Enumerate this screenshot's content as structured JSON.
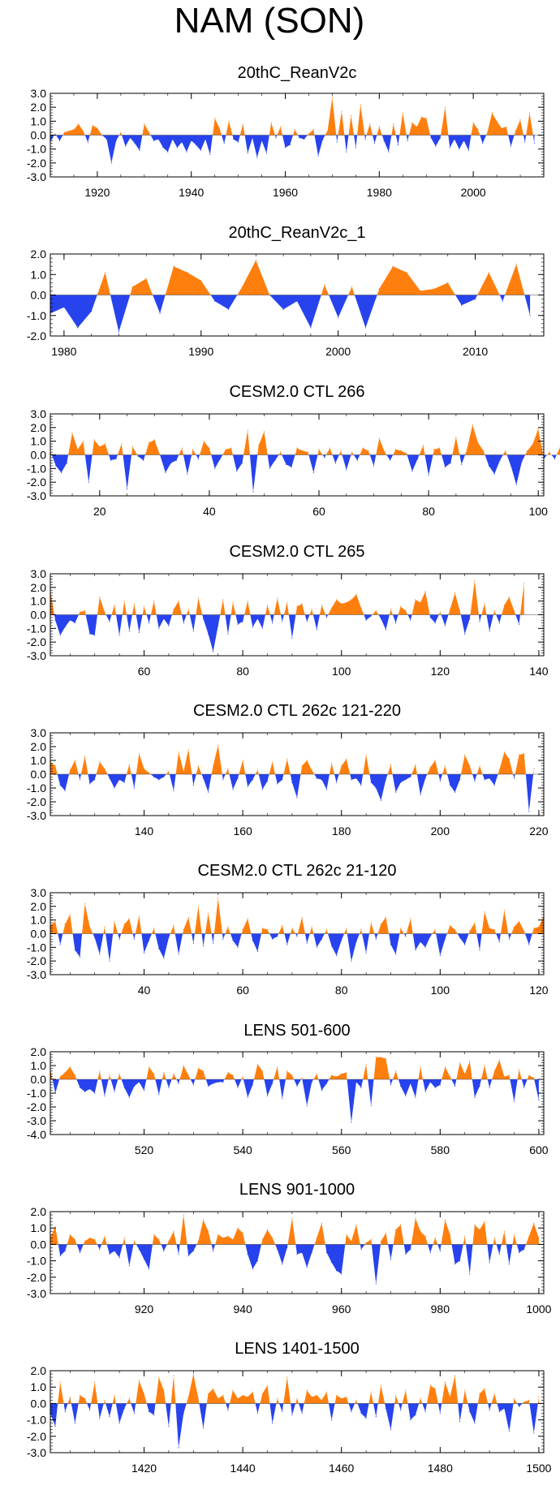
{
  "figure": {
    "title": "NAM (SON)",
    "colors": {
      "positive": "#ff7f0e",
      "negative": "#2743ee",
      "axis": "#000000"
    }
  },
  "chart_data": [
    {
      "type": "area",
      "title": "20thC_ReanV2c",
      "xlim": [
        1910,
        2015
      ],
      "ylim": [
        -3.0,
        3.0
      ],
      "yticks": [
        "3.0",
        "2.0",
        "1.0",
        "0.0",
        "-1.0",
        "-2.0",
        "-3.0"
      ],
      "xticks": [
        1920,
        1940,
        1960,
        1980,
        2000
      ],
      "x_start": 1910,
      "values": [
        -0.5,
        0.1,
        -0.4,
        0.2,
        0.3,
        0.4,
        0.8,
        0.3,
        -0.5,
        0.7,
        0.5,
        0.0,
        -0.3,
        -2.0,
        -0.4,
        0.2,
        -0.8,
        -0.2,
        -0.6,
        -1.1,
        0.8,
        0.2,
        -0.4,
        -0.3,
        -0.9,
        -1.2,
        -0.3,
        -0.9,
        -0.5,
        -1.2,
        -0.4,
        -0.7,
        -1.1,
        -0.3,
        -1.4,
        1.2,
        0.5,
        -0.6,
        1.0,
        -0.3,
        -0.5,
        0.8,
        -1.3,
        -0.2,
        -1.6,
        -0.4,
        -1.3,
        0.9,
        -0.2,
        0.6,
        -0.9,
        -0.7,
        0.4,
        -0.2,
        -0.3,
        0.1,
        0.4,
        -1.5,
        -0.3,
        0.3,
        2.7,
        -0.5,
        1.7,
        -1.2,
        1.4,
        -0.9,
        2.2,
        -0.3,
        0.8,
        -0.6,
        0.6,
        -0.4,
        -1.2,
        0.8,
        -0.7,
        1.6,
        -0.4,
        0.9,
        0.6,
        1.3,
        1.2,
        -0.2,
        -0.8,
        -0.2,
        2.0,
        -0.9,
        -0.3,
        -1.0,
        -0.4,
        -1.1,
        0.9,
        0.4,
        -0.6,
        0.2,
        1.6,
        1.0,
        0.5,
        0.6,
        -0.8,
        0.3,
        1.1,
        -0.5,
        1.6,
        -0.6
      ]
    },
    {
      "type": "area",
      "title": "20thC_ReanV2c_1",
      "xlim": [
        1979,
        2015
      ],
      "ylim": [
        -2.0,
        2.0
      ],
      "yticks": [
        "2.0",
        "1.0",
        "0.0",
        "-1.0",
        "-2.0"
      ],
      "xticks": [
        1980,
        1990,
        2000,
        2010
      ],
      "x_start": 1979,
      "values": [
        -0.9,
        -0.6,
        -1.6,
        -0.8,
        1.1,
        -1.8,
        0.4,
        0.8,
        -0.9,
        1.4,
        1.1,
        0.7,
        -0.3,
        -0.7,
        0.4,
        1.7,
        0.0,
        -0.7,
        -0.3,
        -1.6,
        0.5,
        -1.1,
        0.4,
        -1.6,
        0.3,
        1.4,
        1.1,
        0.2,
        0.3,
        0.6,
        -0.5,
        -0.2,
        1.1,
        -0.3,
        1.5,
        -1.0
      ]
    },
    {
      "type": "area",
      "title": "CESM2.0 CTL 266",
      "xlim": [
        11,
        101
      ],
      "ylim": [
        -3.0,
        3.0
      ],
      "yticks": [
        "3.0",
        "2.0",
        "1.0",
        "0.0",
        "-1.0",
        "-2.0",
        "-3.0"
      ],
      "xticks": [
        20,
        40,
        60,
        80,
        100
      ],
      "x_start": 11,
      "values": [
        0.3,
        -0.8,
        -1.3,
        -0.6,
        1.6,
        0.4,
        1.0,
        -2.0,
        1.1,
        0.6,
        0.8,
        -0.4,
        -0.3,
        0.8,
        -2.5,
        0.6,
        -0.1,
        -0.4,
        0.9,
        1.1,
        0.0,
        -1.3,
        -0.6,
        -0.4,
        0.5,
        -1.4,
        0.4,
        -0.3,
        1.0,
        0.5,
        -1.0,
        -0.3,
        0.4,
        0.5,
        -1.2,
        -0.6,
        1.8,
        -2.7,
        0.7,
        1.7,
        -1.0,
        -0.4,
        0.2,
        -0.7,
        -0.9,
        0.5,
        0.3,
        0.2,
        -1.3,
        0.4,
        -0.2,
        0.5,
        -0.6,
        0.3,
        -1.1,
        0.2,
        -0.4,
        0.5,
        0.3,
        -0.8,
        1.2,
        0.2,
        -0.4,
        0.4,
        0.3,
        0.1,
        -1.2,
        -0.3,
        0.7,
        -1.5,
        0.4,
        0.5,
        -0.9,
        -0.6,
        1.3,
        -0.7,
        0.4,
        2.2,
        0.9,
        0.3,
        -0.8,
        -1.4,
        -0.4,
        0.3,
        -0.8,
        -2.2,
        -0.5,
        0.3,
        0.8,
        1.9,
        -0.3,
        0.2,
        -0.3,
        0.6
      ]
    },
    {
      "type": "area",
      "title": "CESM2.0 CTL 265",
      "xlim": [
        41,
        141
      ],
      "ylim": [
        -3.0,
        3.0
      ],
      "yticks": [
        "3.0",
        "2.0",
        "1.0",
        "0.0",
        "-1.0",
        "-2.0",
        "-3.0"
      ],
      "xticks": [
        60,
        80,
        100,
        120,
        140
      ],
      "x_start": 41,
      "values": [
        1.8,
        -0.4,
        -1.5,
        -0.9,
        -0.4,
        -0.6,
        0.2,
        0.3,
        -1.4,
        -1.5,
        1.3,
        0.2,
        -0.5,
        0.7,
        -1.5,
        1.0,
        -1.2,
        0.8,
        -1.3,
        0.6,
        -0.6,
        1.0,
        -1.0,
        -0.3,
        -0.8,
        0.4,
        1.0,
        -0.6,
        0.4,
        -1.2,
        1.2,
        -0.3,
        -1.4,
        -2.7,
        -0.8,
        1.1,
        -1.4,
        0.9,
        -0.7,
        -0.5,
        1.0,
        -0.9,
        -0.3,
        -1.0,
        0.7,
        -0.6,
        1.2,
        -0.5,
        0.9,
        -1.7,
        0.6,
        0.8,
        -0.5,
        0.4,
        -1.1,
        0.7,
        -0.2,
        0.5,
        1.1,
        0.8,
        0.9,
        1.1,
        1.5,
        0.5,
        -0.4,
        -0.1,
        0.3,
        -0.3,
        -1.1,
        0.4,
        -0.6,
        0.6,
        0.3,
        -0.4,
        1.1,
        0.9,
        1.7,
        -0.2,
        -0.6,
        0.2,
        -0.8,
        0.4,
        1.6,
        0.3,
        -1.4,
        -0.3,
        2.5,
        -0.5,
        0.8,
        -1.2,
        0.3,
        -0.6,
        0.7,
        1.3,
        0.3,
        -0.7,
        2.3
      ]
    },
    {
      "type": "area",
      "title": "CESM2.0 CTL 262c 121-220",
      "xlim": [
        121,
        221
      ],
      "ylim": [
        -3.0,
        3.0
      ],
      "yticks": [
        "3.0",
        "2.0",
        "1.0",
        "0.0",
        "-1.0",
        "-2.0",
        "-3.0"
      ],
      "xticks": [
        140,
        160,
        180,
        200,
        220
      ],
      "x_start": 121,
      "values": [
        0.9,
        0.6,
        -0.8,
        -1.2,
        0.3,
        1.0,
        -0.4,
        1.3,
        -0.7,
        -0.4,
        0.9,
        0.4,
        -0.3,
        -1.0,
        -0.4,
        -0.6,
        0.7,
        -1.0,
        1.5,
        0.4,
        0.1,
        -0.2,
        -0.4,
        -0.2,
        0.2,
        -1.2,
        1.6,
        0.2,
        1.8,
        -0.8,
        0.6,
        -0.3,
        -1.3,
        0.6,
        2.1,
        -0.4,
        0.4,
        -1.1,
        -0.3,
        1.0,
        -0.9,
        -0.4,
        0.3,
        -1.1,
        -0.5,
        0.9,
        -0.7,
        -0.4,
        1.1,
        -0.6,
        -1.7,
        0.6,
        1.0,
        0.3,
        -0.3,
        -0.4,
        -1.1,
        0.8,
        -0.6,
        0.6,
        1.1,
        -0.4,
        -0.3,
        -0.8,
        1.4,
        -0.6,
        -1.0,
        -1.9,
        -0.4,
        0.7,
        -1.3,
        -0.6,
        -0.4,
        -0.2,
        0.7,
        -1.5,
        -0.3,
        0.5,
        1.0,
        -0.5,
        0.6,
        -0.8,
        -1.3,
        -0.4,
        1.4,
        0.6,
        -0.5,
        0.6,
        -0.4,
        -0.3,
        -0.8,
        0.3,
        1.6,
        1.1,
        -0.3,
        1.4,
        1.5,
        -2.7,
        0.4
      ]
    },
    {
      "type": "area",
      "title": "CESM2.0 CTL 262c 21-120",
      "xlim": [
        21,
        121
      ],
      "ylim": [
        -3.0,
        3.0
      ],
      "yticks": [
        "3.0",
        "2.0",
        "1.0",
        "0.0",
        "-1.0",
        "-2.0",
        "-3.0"
      ],
      "xticks": [
        40,
        60,
        80,
        100,
        120
      ],
      "x_start": 21,
      "values": [
        0.6,
        0.9,
        -0.8,
        0.7,
        1.4,
        -1.2,
        -1.7,
        2.2,
        0.5,
        -0.3,
        -1.5,
        0.5,
        -2.0,
        0.9,
        -0.4,
        0.7,
        1.1,
        -0.4,
        1.3,
        -1.4,
        -0.5,
        0.4,
        -1.1,
        -1.8,
        -0.3,
        0.6,
        -1.5,
        0.3,
        1.2,
        -0.7,
        2.0,
        -0.9,
        1.5,
        -0.7,
        2.6,
        -0.4,
        0.5,
        -0.5,
        -1.0,
        0.3,
        1.1,
        -0.5,
        -1.3,
        0.4,
        0.3,
        -0.4,
        -0.2,
        0.6,
        -0.8,
        0.4,
        -0.2,
        1.2,
        -0.7,
        0.5,
        -1.0,
        -0.4,
        0.3,
        -0.9,
        -1.6,
        -0.5,
        0.4,
        -2.0,
        -0.6,
        0.3,
        -1.4,
        0.8,
        -0.4,
        0.7,
        1.2,
        -0.8,
        -1.5,
        0.4,
        -0.2,
        1.1,
        -1.2,
        -0.6,
        -1.0,
        -0.2,
        0.3,
        -1.6,
        -0.4,
        0.6,
        0.3,
        -0.3,
        -0.8,
        0.2,
        0.8,
        -1.2,
        1.6,
        0.4,
        0.3,
        -0.6,
        1.7,
        -0.4,
        0.5,
        0.9,
        0.2,
        -0.8,
        0.4,
        0.5,
        1.3
      ]
    },
    {
      "type": "area",
      "title": "LENS 501-600",
      "xlim": [
        501,
        601
      ],
      "ylim": [
        -4.0,
        2.0
      ],
      "yticks": [
        "2.0",
        "1.0",
        "0.0",
        "-1.0",
        "-2.0",
        "-3.0",
        "-4.0"
      ],
      "xticks": [
        520,
        540,
        560,
        580,
        600
      ],
      "x_start": 501,
      "values": [
        0.8,
        -1.0,
        0.2,
        0.5,
        0.9,
        0.3,
        -0.6,
        -0.9,
        -0.7,
        -1.0,
        0.6,
        -1.2,
        0.3,
        -0.9,
        0.4,
        -0.6,
        -1.3,
        -0.5,
        -0.2,
        -0.8,
        0.9,
        0.4,
        -1.1,
        0.5,
        -0.6,
        0.4,
        -0.3,
        1.0,
        0.3,
        -0.4,
        0.8,
        0.6,
        -0.5,
        -0.3,
        -0.2,
        -0.2,
        0.5,
        0.3,
        -0.6,
        0.2,
        -1.3,
        -0.4,
        1.1,
        0.6,
        -1.2,
        -0.3,
        0.9,
        -1.4,
        0.6,
        0.3,
        -0.5,
        0.1,
        -1.9,
        -0.2,
        0.4,
        -0.8,
        -0.3,
        0.3,
        0.2,
        0.4,
        0.5,
        -3.1,
        -0.2,
        -0.6,
        1.1,
        -1.9,
        1.6,
        1.6,
        1.5,
        -0.4,
        0.6,
        -0.5,
        -1.2,
        -0.3,
        -1.3,
        0.9,
        -0.9,
        -0.2,
        -0.6,
        -0.4,
        0.9,
        0.2,
        -0.5,
        1.2,
        0.4,
        1.3,
        -1.3,
        -0.5,
        1.0,
        -0.6,
        0.6,
        1.4,
        0.2,
        0.3,
        -1.6,
        0.7,
        -0.6,
        0.3,
        0.1,
        -1.5
      ]
    },
    {
      "type": "area",
      "title": "LENS 901-1000",
      "xlim": [
        901,
        1001
      ],
      "ylim": [
        -3.0,
        2.0
      ],
      "yticks": [
        "2.0",
        "1.0",
        "0.0",
        "-1.0",
        "-2.0",
        "-3.0"
      ],
      "xticks": [
        920,
        940,
        960,
        980,
        1000
      ],
      "x_start": 901,
      "values": [
        0.4,
        1.1,
        -0.7,
        -0.4,
        0.6,
        0.3,
        -0.5,
        0.2,
        0.4,
        0.3,
        -0.3,
        0.5,
        -0.6,
        -0.4,
        -0.8,
        0.4,
        -1.3,
        0.2,
        -0.3,
        -0.9,
        -1.5,
        0.6,
        0.3,
        -0.4,
        0.2,
        0.8,
        -0.6,
        1.8,
        -0.7,
        -0.4,
        0.2,
        1.5,
        0.8,
        -0.4,
        0.6,
        0.4,
        0.5,
        0.3,
        1.0,
        0.7,
        -0.6,
        -1.5,
        -1.0,
        0.3,
        0.9,
        0.4,
        -0.3,
        -1.2,
        -0.2,
        1.6,
        -0.6,
        -0.5,
        -1.4,
        -0.5,
        0.4,
        1.3,
        -0.5,
        -1.1,
        -1.6,
        -1.8,
        0.6,
        0.2,
        1.2,
        -0.3,
        0.1,
        0.3,
        -2.4,
        0.2,
        0.7,
        -0.9,
        0.9,
        1.2,
        -0.6,
        -0.3,
        1.6,
        0.8,
        0.5,
        -0.5,
        0.4,
        -0.4,
        1.5,
        0.6,
        -1.2,
        -1.0,
        0.5,
        -1.8,
        1.2,
        0.9,
        1.4,
        -1.1,
        0.4,
        -0.6,
        0.8,
        -1.2,
        0.6,
        -0.5,
        -0.3,
        0.5,
        1.3,
        0.4
      ]
    },
    {
      "type": "area",
      "title": "LENS 1401-1500",
      "xlim": [
        1401,
        1501
      ],
      "ylim": [
        -3.0,
        2.0
      ],
      "yticks": [
        "2.0",
        "1.0",
        "0.0",
        "-1.0",
        "-2.0",
        "-3.0"
      ],
      "xticks": [
        1420,
        1440,
        1460,
        1480,
        1500
      ],
      "x_start": 1401,
      "values": [
        -0.6,
        -1.4,
        1.3,
        -0.5,
        0.4,
        -1.2,
        0.5,
        0.3,
        -0.4,
        1.3,
        -0.9,
        0.2,
        -0.8,
        0.5,
        -1.2,
        -0.3,
        0.3,
        -0.6,
        1.4,
        0.6,
        -0.5,
        -0.7,
        1.6,
        0.8,
        -1.4,
        1.7,
        -2.7,
        -0.6,
        0.4,
        1.8,
        0.3,
        -1.5,
        0.6,
        0.9,
        0.3,
        0.5,
        -0.4,
        0.8,
        0.3,
        0.5,
        0.4,
        0.7,
        -0.6,
        0.6,
        1.1,
        -1.2,
        0.3,
        -0.5,
        1.6,
        -0.7,
        0.3,
        -0.6,
        0.8,
        0.4,
        0.5,
        0.2,
        0.7,
        -1.0,
        0.5,
        0.3,
        0.4,
        -0.5,
        0.2,
        -0.6,
        -0.9,
        0.7,
        -0.8,
        1.1,
        -0.3,
        -1.6,
        0.5,
        -0.4,
        0.8,
        -1.0,
        -0.7,
        0.3,
        -0.5,
        1.1,
        0.9,
        -0.6,
        1.3,
        0.4,
        1.7,
        -1.1,
        0.8,
        -0.5,
        -1.2,
        0.6,
        0.9,
        -0.4,
        0.6,
        -0.5,
        -0.3,
        -1.7,
        0.3,
        -0.2,
        0.1,
        0.2,
        -1.8,
        0.4
      ]
    }
  ]
}
